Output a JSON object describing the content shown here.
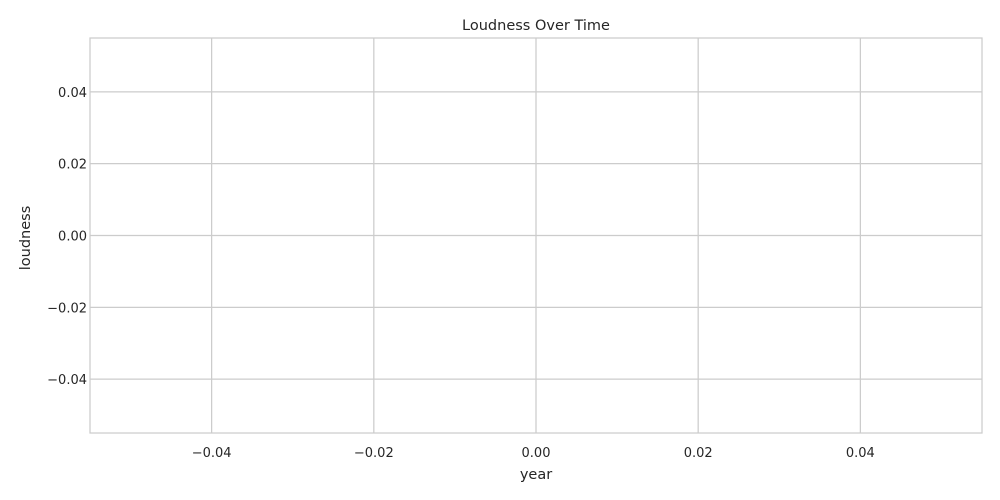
{
  "chart_data": {
    "type": "line",
    "title": "Loudness Over Time",
    "xlabel": "year",
    "ylabel": "loudness",
    "xlim": [
      -0.055,
      0.055
    ],
    "ylim": [
      -0.055,
      0.055
    ],
    "xticks": [
      -0.04,
      -0.02,
      0.0,
      0.02,
      0.04
    ],
    "yticks": [
      -0.04,
      -0.02,
      0.0,
      0.02,
      0.04
    ],
    "xtick_labels": [
      "−0.04",
      "−0.02",
      "0.00",
      "0.02",
      "0.04"
    ],
    "ytick_labels": [
      "−0.04",
      "−0.02",
      "0.00",
      "0.02",
      "0.04"
    ],
    "grid": true,
    "series": [
      {
        "x": [],
        "values": []
      }
    ],
    "colors": {
      "grid": "#cccccc",
      "frame": "#cccccc",
      "text": "#262626"
    }
  }
}
